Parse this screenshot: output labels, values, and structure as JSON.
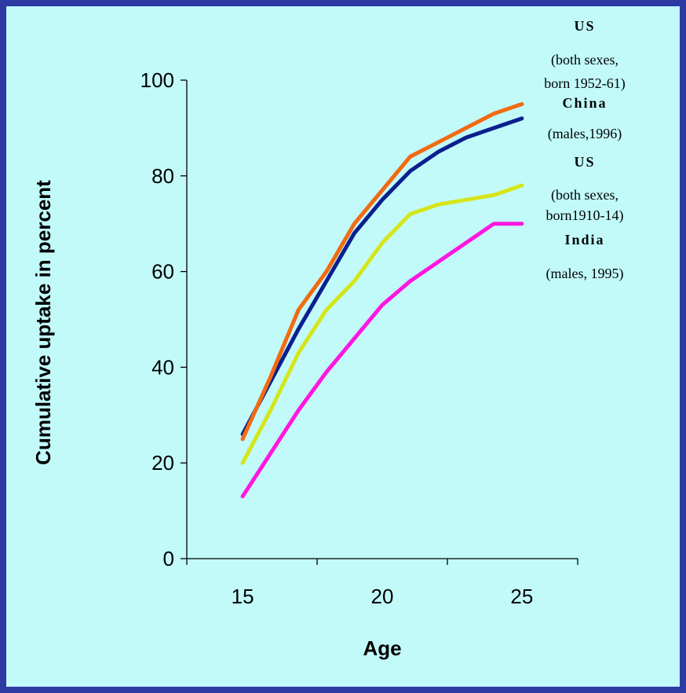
{
  "chart_data": {
    "type": "line",
    "xlabel": "Age",
    "ylabel": "Cumulative uptake in percent",
    "xlim": [
      13,
      27
    ],
    "ylim": [
      0,
      100
    ],
    "xticks": [
      15,
      20,
      25
    ],
    "yticks": [
      0,
      20,
      40,
      60,
      80,
      100
    ],
    "grid": false,
    "legend_position": "right",
    "series": [
      {
        "name": "US",
        "subtitle": [
          "(both sexes,",
          "born 1952-61)"
        ],
        "color": "#f26a12",
        "x": [
          15,
          16,
          17,
          18,
          19,
          20,
          21,
          22,
          23,
          24,
          25
        ],
        "y": [
          25,
          38,
          52,
          60,
          70,
          77,
          84,
          87,
          90,
          93,
          95
        ]
      },
      {
        "name": "China",
        "subtitle": [
          "(males,1996)"
        ],
        "color": "#0a1f8f",
        "x": [
          15,
          16,
          17,
          18,
          19,
          20,
          21,
          22,
          23,
          24,
          25
        ],
        "y": [
          26,
          37,
          48,
          58,
          68,
          75,
          81,
          85,
          88,
          90,
          92
        ]
      },
      {
        "name": "US",
        "subtitle": [
          "(both sexes,",
          "born1910-14)"
        ],
        "color": "#d6e51a",
        "x": [
          15,
          16,
          17,
          18,
          19,
          20,
          21,
          22,
          23,
          24,
          25
        ],
        "y": [
          20,
          31,
          43,
          52,
          58,
          66,
          72,
          74,
          75,
          76,
          78
        ]
      },
      {
        "name": "India",
        "subtitle": [
          "(males, 1995)"
        ],
        "color": "#ff17e0",
        "x": [
          15,
          16,
          17,
          18,
          19,
          20,
          21,
          22,
          23,
          24,
          25
        ],
        "y": [
          13,
          22,
          31,
          39,
          46,
          53,
          58,
          62,
          66,
          70,
          70
        ]
      }
    ]
  }
}
